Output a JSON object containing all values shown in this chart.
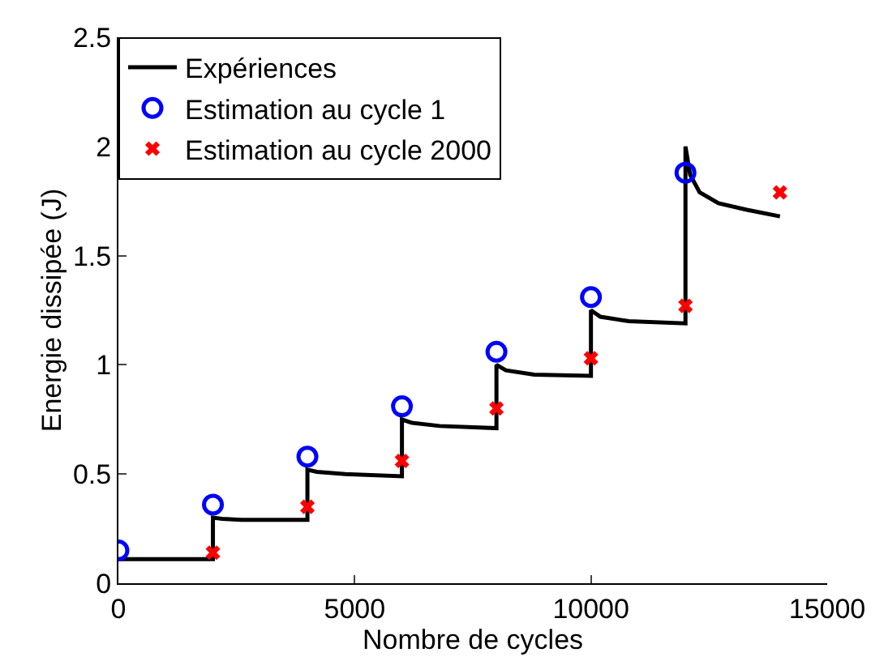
{
  "chart_data": {
    "type": "line",
    "xlabel": "Nombre de cycles",
    "ylabel": "Energie dissipée (J)",
    "xlim": [
      0,
      15000
    ],
    "xticks": [
      0,
      5000,
      10000,
      15000
    ],
    "ylim": [
      0,
      2.5
    ],
    "yticks": [
      0,
      0.5,
      1,
      1.5,
      2,
      2.5
    ],
    "grid": false,
    "legend": "top left",
    "series": [
      {
        "name": "Expériences",
        "color": "#000000",
        "marker": "none",
        "x": [
          0,
          2000,
          2000,
          2200,
          2600,
          4000,
          4000,
          4200,
          4800,
          6000,
          6000,
          6200,
          6800,
          8000,
          8000,
          8200,
          8800,
          10000,
          10000,
          10200,
          10800,
          12000,
          12000,
          12100,
          12300,
          12700,
          13300,
          14000
        ],
        "values": [
          0.11,
          0.11,
          0.3,
          0.295,
          0.29,
          0.29,
          0.52,
          0.51,
          0.5,
          0.49,
          0.75,
          0.735,
          0.72,
          0.71,
          1.0,
          0.975,
          0.955,
          0.95,
          1.25,
          1.22,
          1.2,
          1.19,
          2.0,
          1.87,
          1.79,
          1.74,
          1.71,
          1.68
        ]
      },
      {
        "name": "Estimation au cycle 1",
        "type": "scatter",
        "color": "#0000ff",
        "marker": "circle",
        "x": [
          0,
          2000,
          4000,
          6000,
          8000,
          10000,
          12000
        ],
        "values": [
          0.15,
          0.36,
          0.58,
          0.81,
          1.06,
          1.31,
          1.88
        ]
      },
      {
        "name": "Estimation au cycle 2000",
        "type": "scatter",
        "color": "#ff0000",
        "marker": "cross",
        "x": [
          2000,
          4000,
          6000,
          8000,
          10000,
          12000,
          14000
        ],
        "values": [
          0.14,
          0.35,
          0.56,
          0.8,
          1.03,
          1.27,
          1.79
        ]
      }
    ]
  }
}
